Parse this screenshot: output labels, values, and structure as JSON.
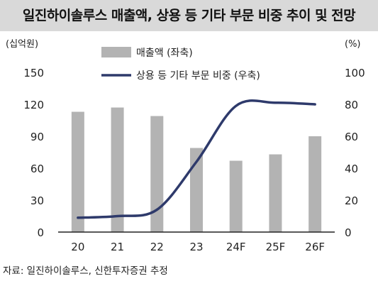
{
  "title": "일진하이솔루스 매출액, 상용 등 기타 부문 비중 추이 및 전망",
  "source": "자료: 일진하이솔루스, 신한투자증권 추정",
  "chart_data": {
    "type": "bar+line",
    "categories": [
      "20",
      "21",
      "22",
      "23",
      "24F",
      "25F",
      "26F"
    ],
    "series": [
      {
        "name": "매출액 (좌축)",
        "type": "bar",
        "axis": "left",
        "color": "#b3b3b3",
        "values": [
          113,
          117,
          109,
          79,
          67,
          73,
          90
        ]
      },
      {
        "name": "상용 등 기타 부문 비중 (우축)",
        "type": "line",
        "axis": "right",
        "color": "#2e3a6b",
        "values": [
          9,
          10,
          14,
          44,
          79,
          81,
          80
        ]
      }
    ],
    "y_left": {
      "unit": "(십억원)",
      "min": 0,
      "max": 150,
      "ticks": [
        0,
        30,
        60,
        90,
        120,
        150
      ]
    },
    "y_right": {
      "unit": "(%)",
      "min": 0,
      "max": 100,
      "ticks": [
        0,
        20,
        40,
        60,
        80,
        100
      ]
    },
    "grid": false,
    "legend": "top-left"
  }
}
